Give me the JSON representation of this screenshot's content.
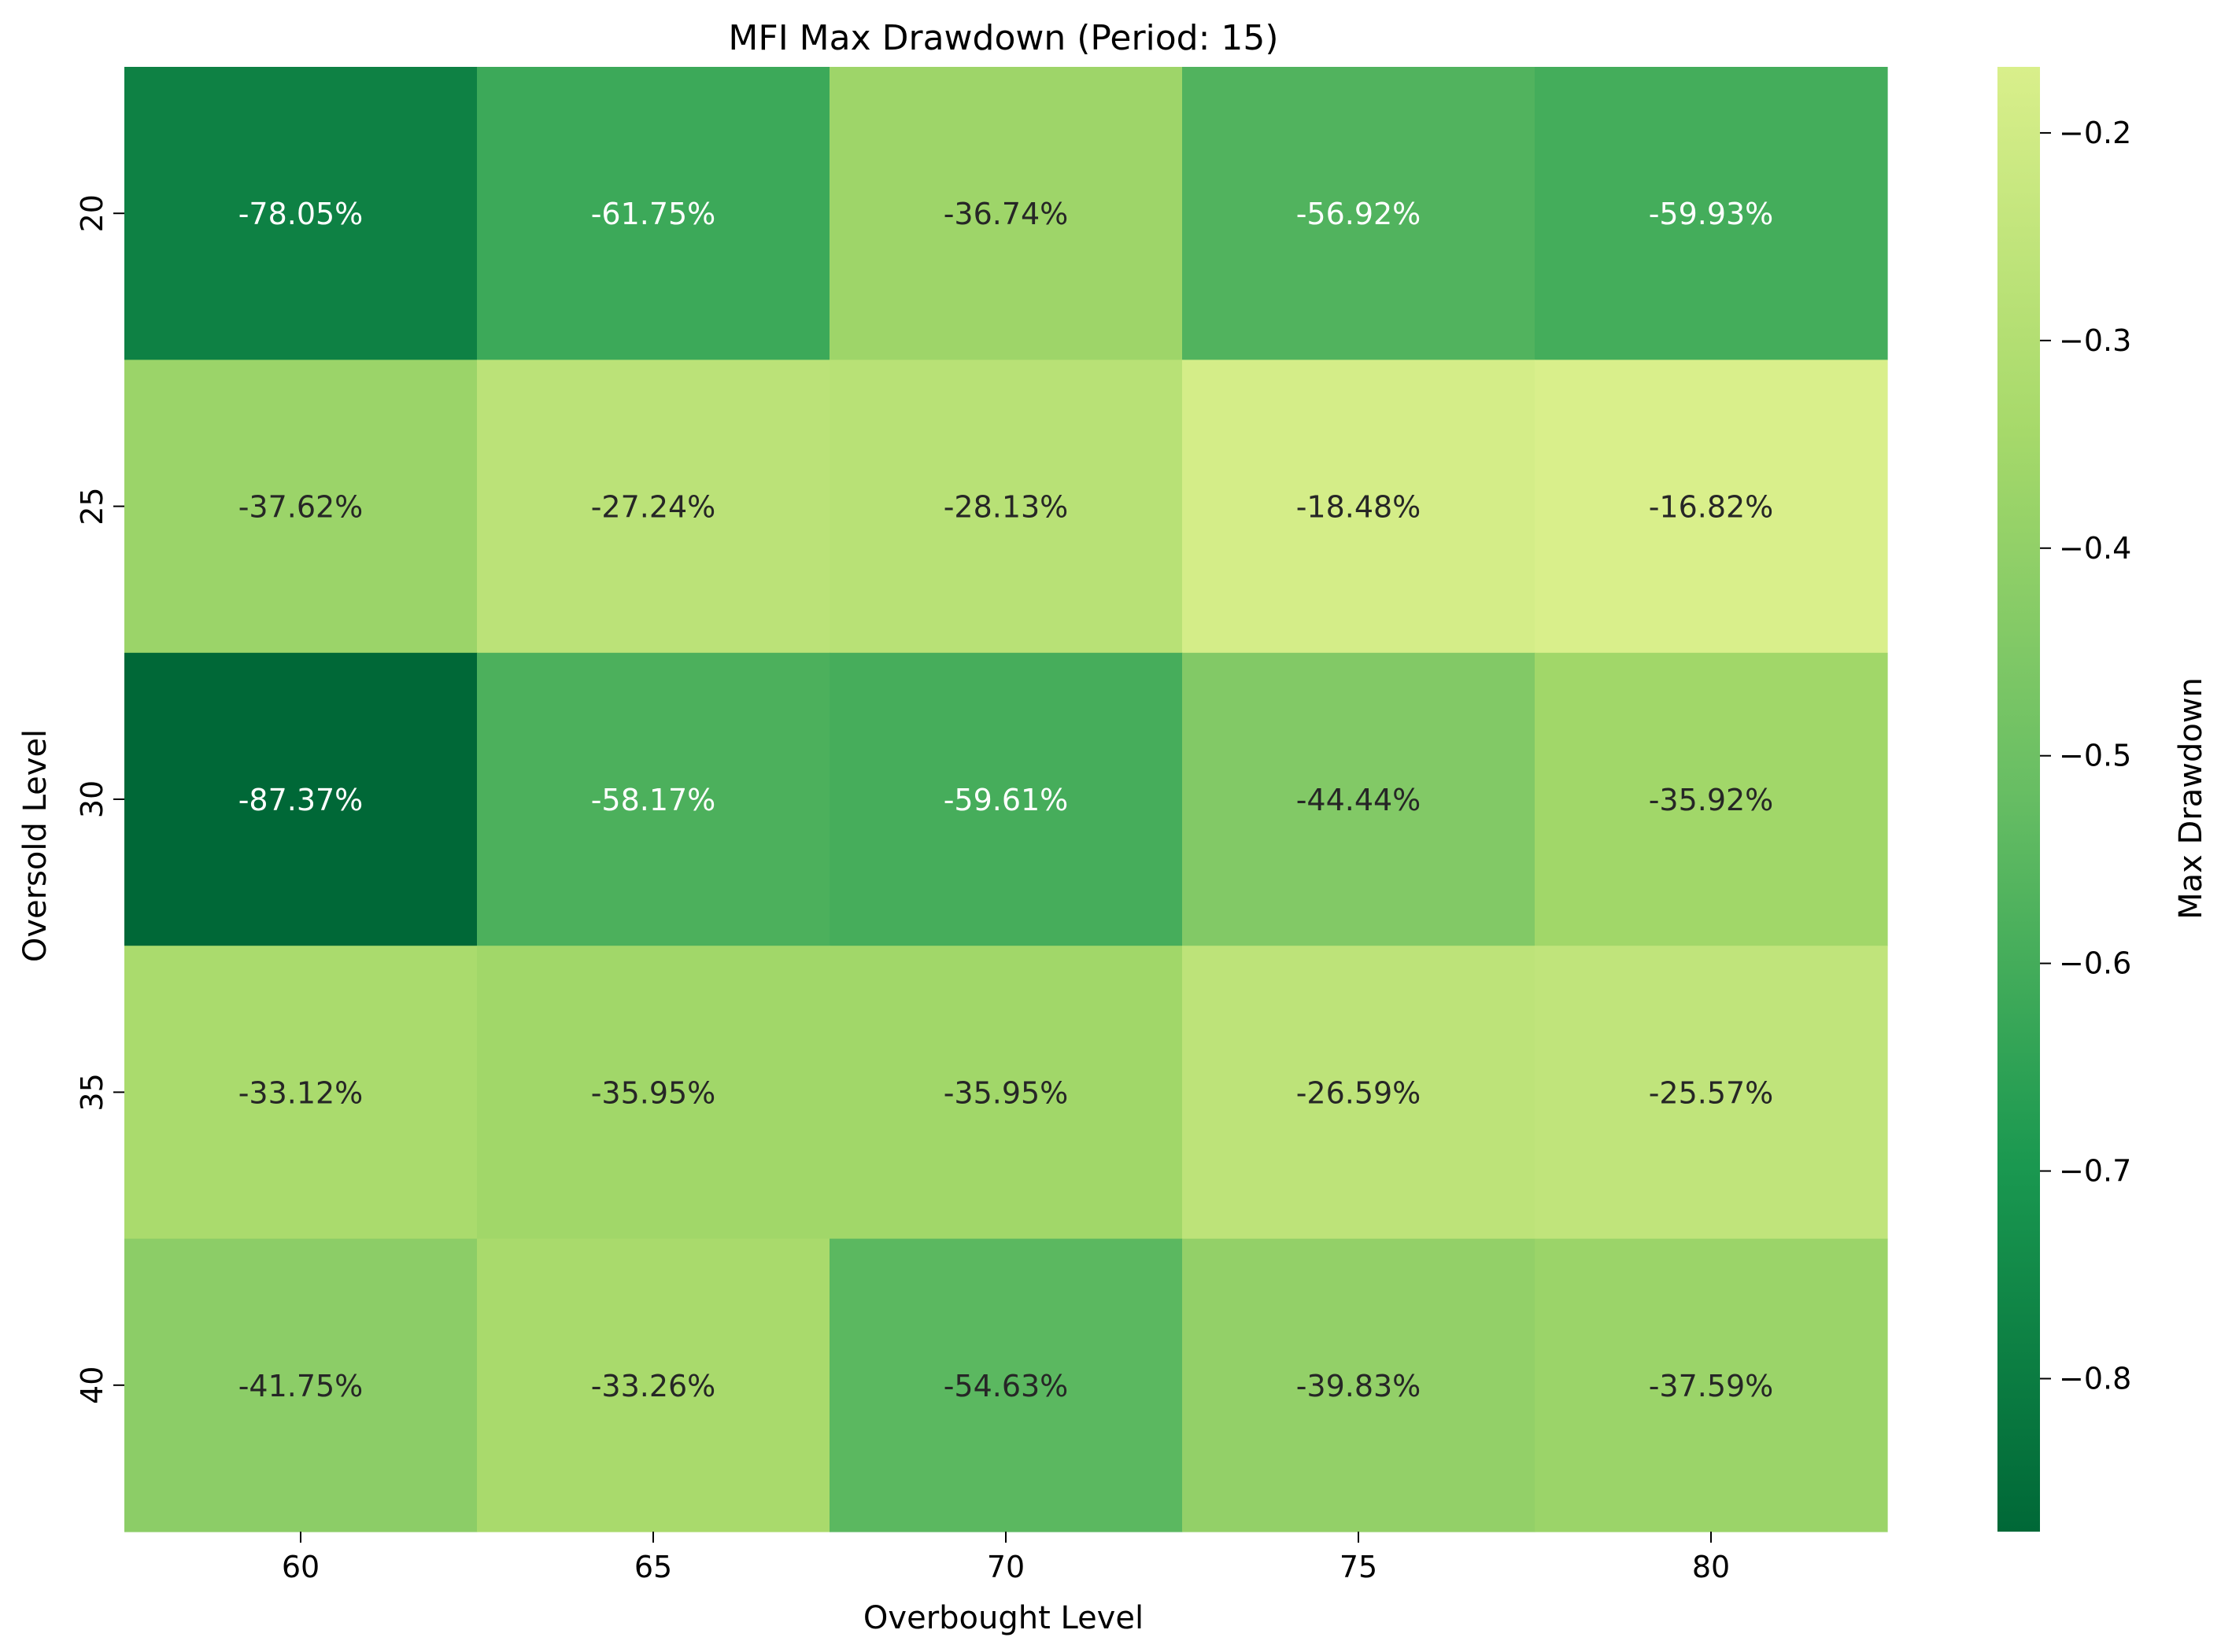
{
  "chart_data": {
    "type": "heatmap",
    "title": "MFI Max Drawdown (Period: 15)",
    "xlabel": "Overbought Level",
    "ylabel": "Oversold Level",
    "x_categories": [
      "60",
      "65",
      "70",
      "75",
      "80"
    ],
    "y_categories": [
      "20",
      "25",
      "30",
      "35",
      "40"
    ],
    "values": [
      [
        -0.7805,
        -0.6175,
        -0.3674,
        -0.5692,
        -0.5993
      ],
      [
        -0.3762,
        -0.2724,
        -0.2813,
        -0.1848,
        -0.1682
      ],
      [
        -0.8737,
        -0.5817,
        -0.5961,
        -0.4444,
        -0.3592
      ],
      [
        -0.3312,
        -0.3595,
        -0.3595,
        -0.2659,
        -0.2557
      ],
      [
        -0.4175,
        -0.3326,
        -0.5463,
        -0.3983,
        -0.3759
      ]
    ],
    "cell_labels": [
      [
        "-78.05%",
        "-61.75%",
        "-36.74%",
        "-56.92%",
        "-59.93%"
      ],
      [
        "-37.62%",
        "-27.24%",
        "-28.13%",
        "-18.48%",
        "-16.82%"
      ],
      [
        "-87.37%",
        "-58.17%",
        "-59.61%",
        "-44.44%",
        "-35.92%"
      ],
      [
        "-33.12%",
        "-35.95%",
        "-35.95%",
        "-26.59%",
        "-25.57%"
      ],
      [
        "-41.75%",
        "-33.26%",
        "-54.63%",
        "-39.83%",
        "-37.59%"
      ]
    ],
    "colorbar": {
      "label": "Max Drawdown",
      "min": -0.8737,
      "max": -0.1682,
      "ticks": [
        "-0.2",
        "-0.3",
        "-0.4",
        "-0.5",
        "-0.6",
        "-0.7",
        "-0.8"
      ],
      "tick_values": [
        -0.2,
        -0.3,
        -0.4,
        -0.5,
        -0.6,
        -0.7,
        -0.8
      ]
    },
    "colormap": [
      "#006837",
      "#1a9850",
      "#66bd63",
      "#a6d96a",
      "#d9ef8b"
    ],
    "label_text_colors": {
      "dark_cell": "#ffffff",
      "light_cell": "#262626"
    },
    "grid": false,
    "legend": "colorbar-right"
  }
}
